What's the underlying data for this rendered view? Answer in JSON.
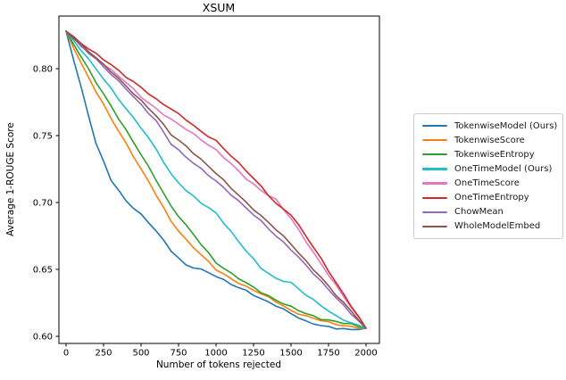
{
  "chart_data": {
    "type": "line",
    "title": "XSUM",
    "xlabel": "Number of tokens rejected",
    "ylabel": "Average 1-ROUGE Score",
    "xlim": [
      -50,
      2090
    ],
    "ylim": [
      0.595,
      0.839
    ],
    "grid": false,
    "legend_position": "right-outside",
    "x_ticks": [
      0,
      250,
      500,
      750,
      1000,
      1250,
      1500,
      1750,
      2000
    ],
    "y_ticks": [
      0.6,
      0.65,
      0.7,
      0.75,
      0.8
    ],
    "y_tick_labels": [
      "0.60",
      "0.65",
      "0.70",
      "0.75",
      "0.80"
    ],
    "x": [
      0,
      100,
      200,
      300,
      400,
      500,
      600,
      700,
      800,
      900,
      1000,
      1100,
      1200,
      1300,
      1400,
      1500,
      1600,
      1700,
      1800,
      1900,
      2000
    ],
    "series": [
      {
        "name": "TokenwiseModel (Ours)",
        "color": "#1f77b4",
        "values": [
          0.828,
          0.786,
          0.744,
          0.717,
          0.701,
          0.691,
          0.679,
          0.664,
          0.653,
          0.65,
          0.645,
          0.639,
          0.634,
          0.628,
          0.623,
          0.617,
          0.611,
          0.608,
          0.606,
          0.605,
          0.606
        ]
      },
      {
        "name": "TokenwiseScore",
        "color": "#ff7f0e",
        "values": [
          0.828,
          0.804,
          0.783,
          0.763,
          0.744,
          0.725,
          0.706,
          0.686,
          0.672,
          0.661,
          0.65,
          0.643,
          0.637,
          0.632,
          0.626,
          0.619,
          0.615,
          0.612,
          0.609,
          0.607,
          0.606
        ]
      },
      {
        "name": "TokenwiseEntropy",
        "color": "#2ca02c",
        "values": [
          0.828,
          0.809,
          0.79,
          0.772,
          0.754,
          0.736,
          0.717,
          0.697,
          0.683,
          0.669,
          0.655,
          0.647,
          0.64,
          0.633,
          0.627,
          0.622,
          0.617,
          0.613,
          0.611,
          0.609,
          0.606
        ]
      },
      {
        "name": "OneTimeModel (Ours)",
        "color": "#1cbecf",
        "values": [
          0.828,
          0.814,
          0.8,
          0.785,
          0.77,
          0.756,
          0.74,
          0.721,
          0.709,
          0.7,
          0.692,
          0.678,
          0.664,
          0.651,
          0.643,
          0.64,
          0.631,
          0.623,
          0.615,
          0.61,
          0.606
        ]
      },
      {
        "name": "OneTimeScore",
        "color": "#e377c2",
        "values": [
          0.828,
          0.817,
          0.808,
          0.799,
          0.79,
          0.779,
          0.77,
          0.762,
          0.755,
          0.747,
          0.739,
          0.729,
          0.718,
          0.709,
          0.702,
          0.688,
          0.671,
          0.654,
          0.638,
          0.622,
          0.606
        ]
      },
      {
        "name": "OneTimeEntropy",
        "color": "#d62728",
        "values": [
          0.828,
          0.819,
          0.811,
          0.803,
          0.794,
          0.786,
          0.777,
          0.77,
          0.762,
          0.753,
          0.746,
          0.735,
          0.724,
          0.712,
          0.699,
          0.691,
          0.675,
          0.658,
          0.64,
          0.623,
          0.606
        ]
      },
      {
        "name": "ChowMean",
        "color": "#9467bd",
        "values": [
          0.828,
          0.817,
          0.807,
          0.796,
          0.785,
          0.773,
          0.761,
          0.744,
          0.734,
          0.725,
          0.716,
          0.706,
          0.696,
          0.686,
          0.675,
          0.665,
          0.653,
          0.641,
          0.629,
          0.617,
          0.606
        ]
      },
      {
        "name": "WholeModelEmbed",
        "color": "#8c564b",
        "values": [
          0.828,
          0.818,
          0.808,
          0.798,
          0.787,
          0.776,
          0.765,
          0.751,
          0.742,
          0.732,
          0.722,
          0.711,
          0.7,
          0.69,
          0.68,
          0.669,
          0.656,
          0.644,
          0.631,
          0.619,
          0.606
        ]
      }
    ]
  }
}
